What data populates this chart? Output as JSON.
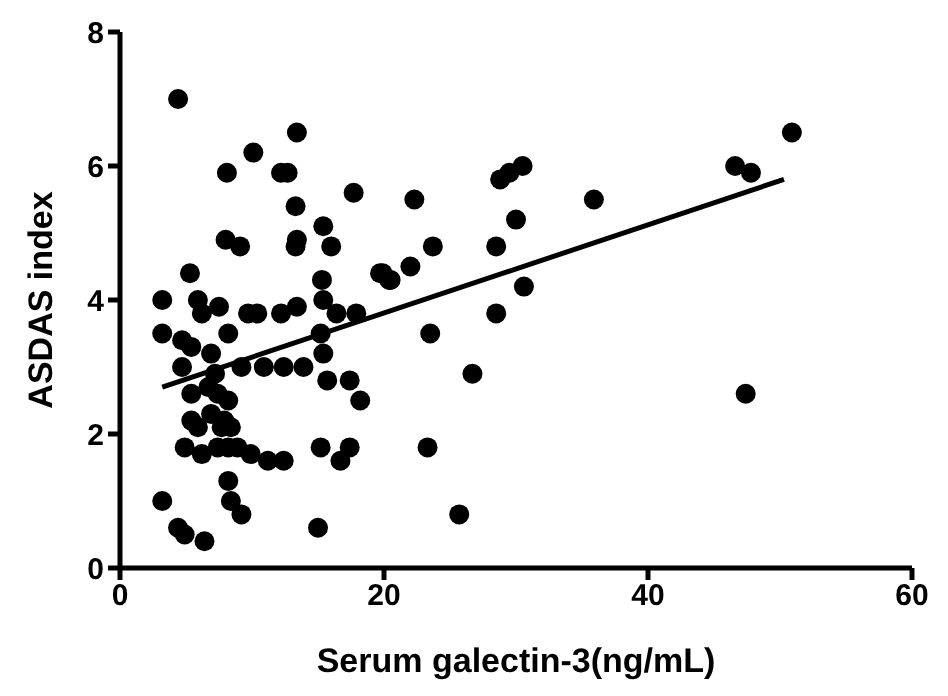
{
  "chart_data": {
    "type": "scatter",
    "xlabel": "Serum galectin-3(ng/mL)",
    "ylabel": "ASDAS index",
    "xlim": [
      0,
      60
    ],
    "ylim": [
      0,
      8
    ],
    "xticks": [
      0,
      20,
      40,
      60
    ],
    "yticks": [
      0,
      2,
      4,
      6,
      8
    ],
    "series": [
      {
        "marker": "circle",
        "color": "#000000",
        "x": [
          50.9,
          46.6,
          47.8,
          47.4,
          35.9,
          28.8,
          29.5,
          30.5,
          30.0,
          28.5,
          30.6,
          28.5,
          26.7,
          22.3,
          23.7,
          22.0,
          20.4,
          19.9,
          23.5,
          23.3,
          25.7,
          4.4,
          13.4,
          10.1,
          8.1,
          12.2,
          12.7,
          17.7,
          13.3,
          8.0,
          9.1,
          13.4,
          13.3,
          15.4,
          16.0,
          5.3,
          19.7,
          20.5,
          15.3,
          3.2,
          5.9,
          6.2,
          7.5,
          9.7,
          10.4,
          12.2,
          13.4,
          15.4,
          16.4,
          17.9,
          3.2,
          4.7,
          5.4,
          8.2,
          15.2,
          15.4,
          4.7,
          6.9,
          7.2,
          9.2,
          10.9,
          12.4,
          13.9,
          15.7,
          17.4,
          18.2,
          5.4,
          6.7,
          7.4,
          8.2,
          5.4,
          6.9,
          7.9,
          5.9,
          7.7,
          8.4,
          4.9,
          6.2,
          7.4,
          8.2,
          8.9,
          9.9,
          11.2,
          12.4,
          15.2,
          17.4,
          16.7,
          8.2,
          8.4,
          9.2,
          3.2,
          4.4,
          4.9,
          6.4,
          15.0
        ],
        "values": [
          6.5,
          6.0,
          5.9,
          2.6,
          5.5,
          5.8,
          5.9,
          6.0,
          5.2,
          4.8,
          4.2,
          3.8,
          2.9,
          5.5,
          4.8,
          4.5,
          4.3,
          4.4,
          3.5,
          1.8,
          0.8,
          7.0,
          6.5,
          6.2,
          5.9,
          5.9,
          5.9,
          5.6,
          5.4,
          4.9,
          4.8,
          4.9,
          4.8,
          5.1,
          4.8,
          4.4,
          4.4,
          4.3,
          4.3,
          4.0,
          4.0,
          3.8,
          3.9,
          3.8,
          3.8,
          3.8,
          3.9,
          4.0,
          3.8,
          3.8,
          3.5,
          3.4,
          3.3,
          3.5,
          3.5,
          3.2,
          3.0,
          3.2,
          2.9,
          3.0,
          3.0,
          3.0,
          3.0,
          2.8,
          2.8,
          2.5,
          2.6,
          2.7,
          2.6,
          2.5,
          2.2,
          2.3,
          2.2,
          2.1,
          2.1,
          2.1,
          1.8,
          1.7,
          1.8,
          1.8,
          1.8,
          1.7,
          1.6,
          1.6,
          1.8,
          1.8,
          1.6,
          1.3,
          1.0,
          0.8,
          1.0,
          0.6,
          0.5,
          0.4,
          0.6
        ]
      },
      {
        "type": "line",
        "marker": "none",
        "color": "#000000",
        "x": [
          3.2,
          50.3
        ],
        "values": [
          2.7,
          5.8
        ]
      }
    ]
  }
}
